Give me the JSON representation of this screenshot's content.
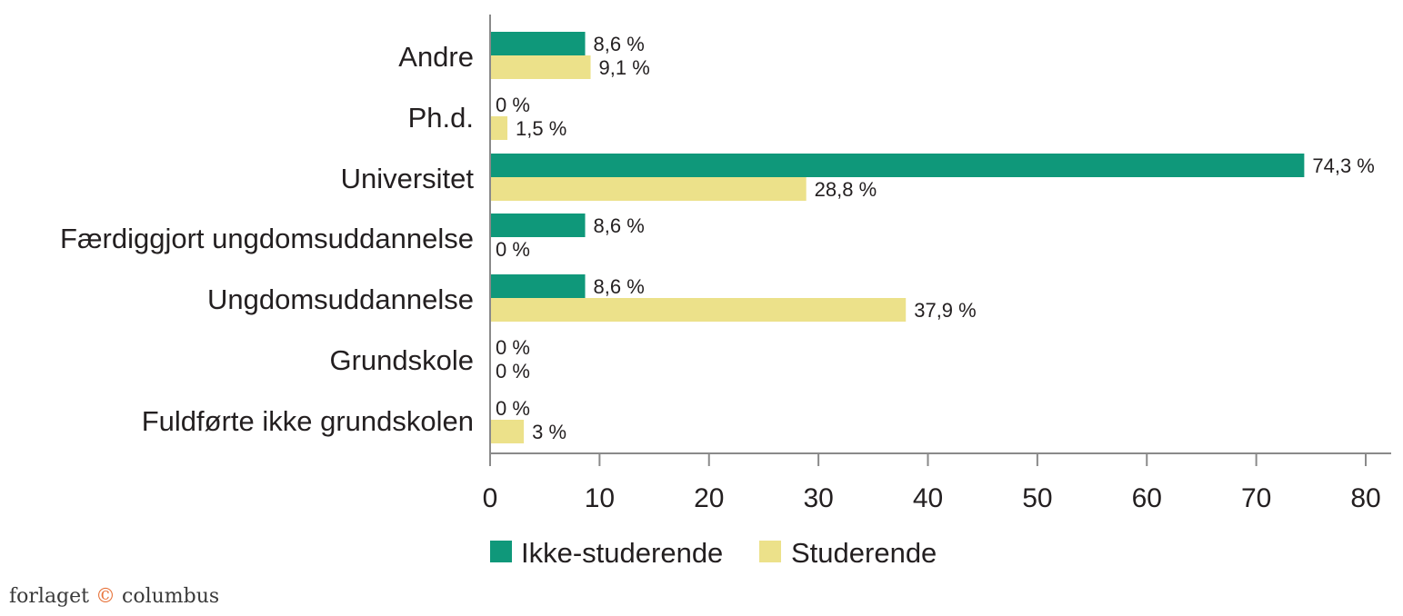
{
  "chart_data": {
    "type": "bar",
    "orientation": "horizontal",
    "categories": [
      "Andre",
      "Ph.d.",
      "Universitet",
      "Færdiggjort ungdomsuddannelse",
      "Ungdomsuddannelse",
      "Grundskole",
      "Fuldførte ikke grundskolen"
    ],
    "series": [
      {
        "name": "Ikke-studerende",
        "color": "#0f987a",
        "values": [
          8.6,
          0,
          74.3,
          8.6,
          8.6,
          0,
          0
        ],
        "labels": [
          "8,6 %",
          "0 %",
          "74,3 %",
          "8,6 %",
          "8,6 %",
          "0 %",
          "0 %"
        ]
      },
      {
        "name": "Studerende",
        "color": "#ece18a",
        "values": [
          9.1,
          1.5,
          28.8,
          0,
          37.9,
          0,
          3
        ],
        "labels": [
          "9,1 %",
          "1,5 %",
          "28,8 %",
          "0 %",
          "37,9 %",
          "0 %",
          "3 %"
        ]
      }
    ],
    "xlim": [
      0,
      80
    ],
    "xticks": [
      "0",
      "10",
      "20",
      "30",
      "40",
      "50",
      "60",
      "70",
      "80"
    ],
    "legend_position": "bottom",
    "grid": false
  },
  "footer": {
    "brand_left": "forlaget",
    "brand_mark": "©",
    "brand_right": "columbus"
  }
}
